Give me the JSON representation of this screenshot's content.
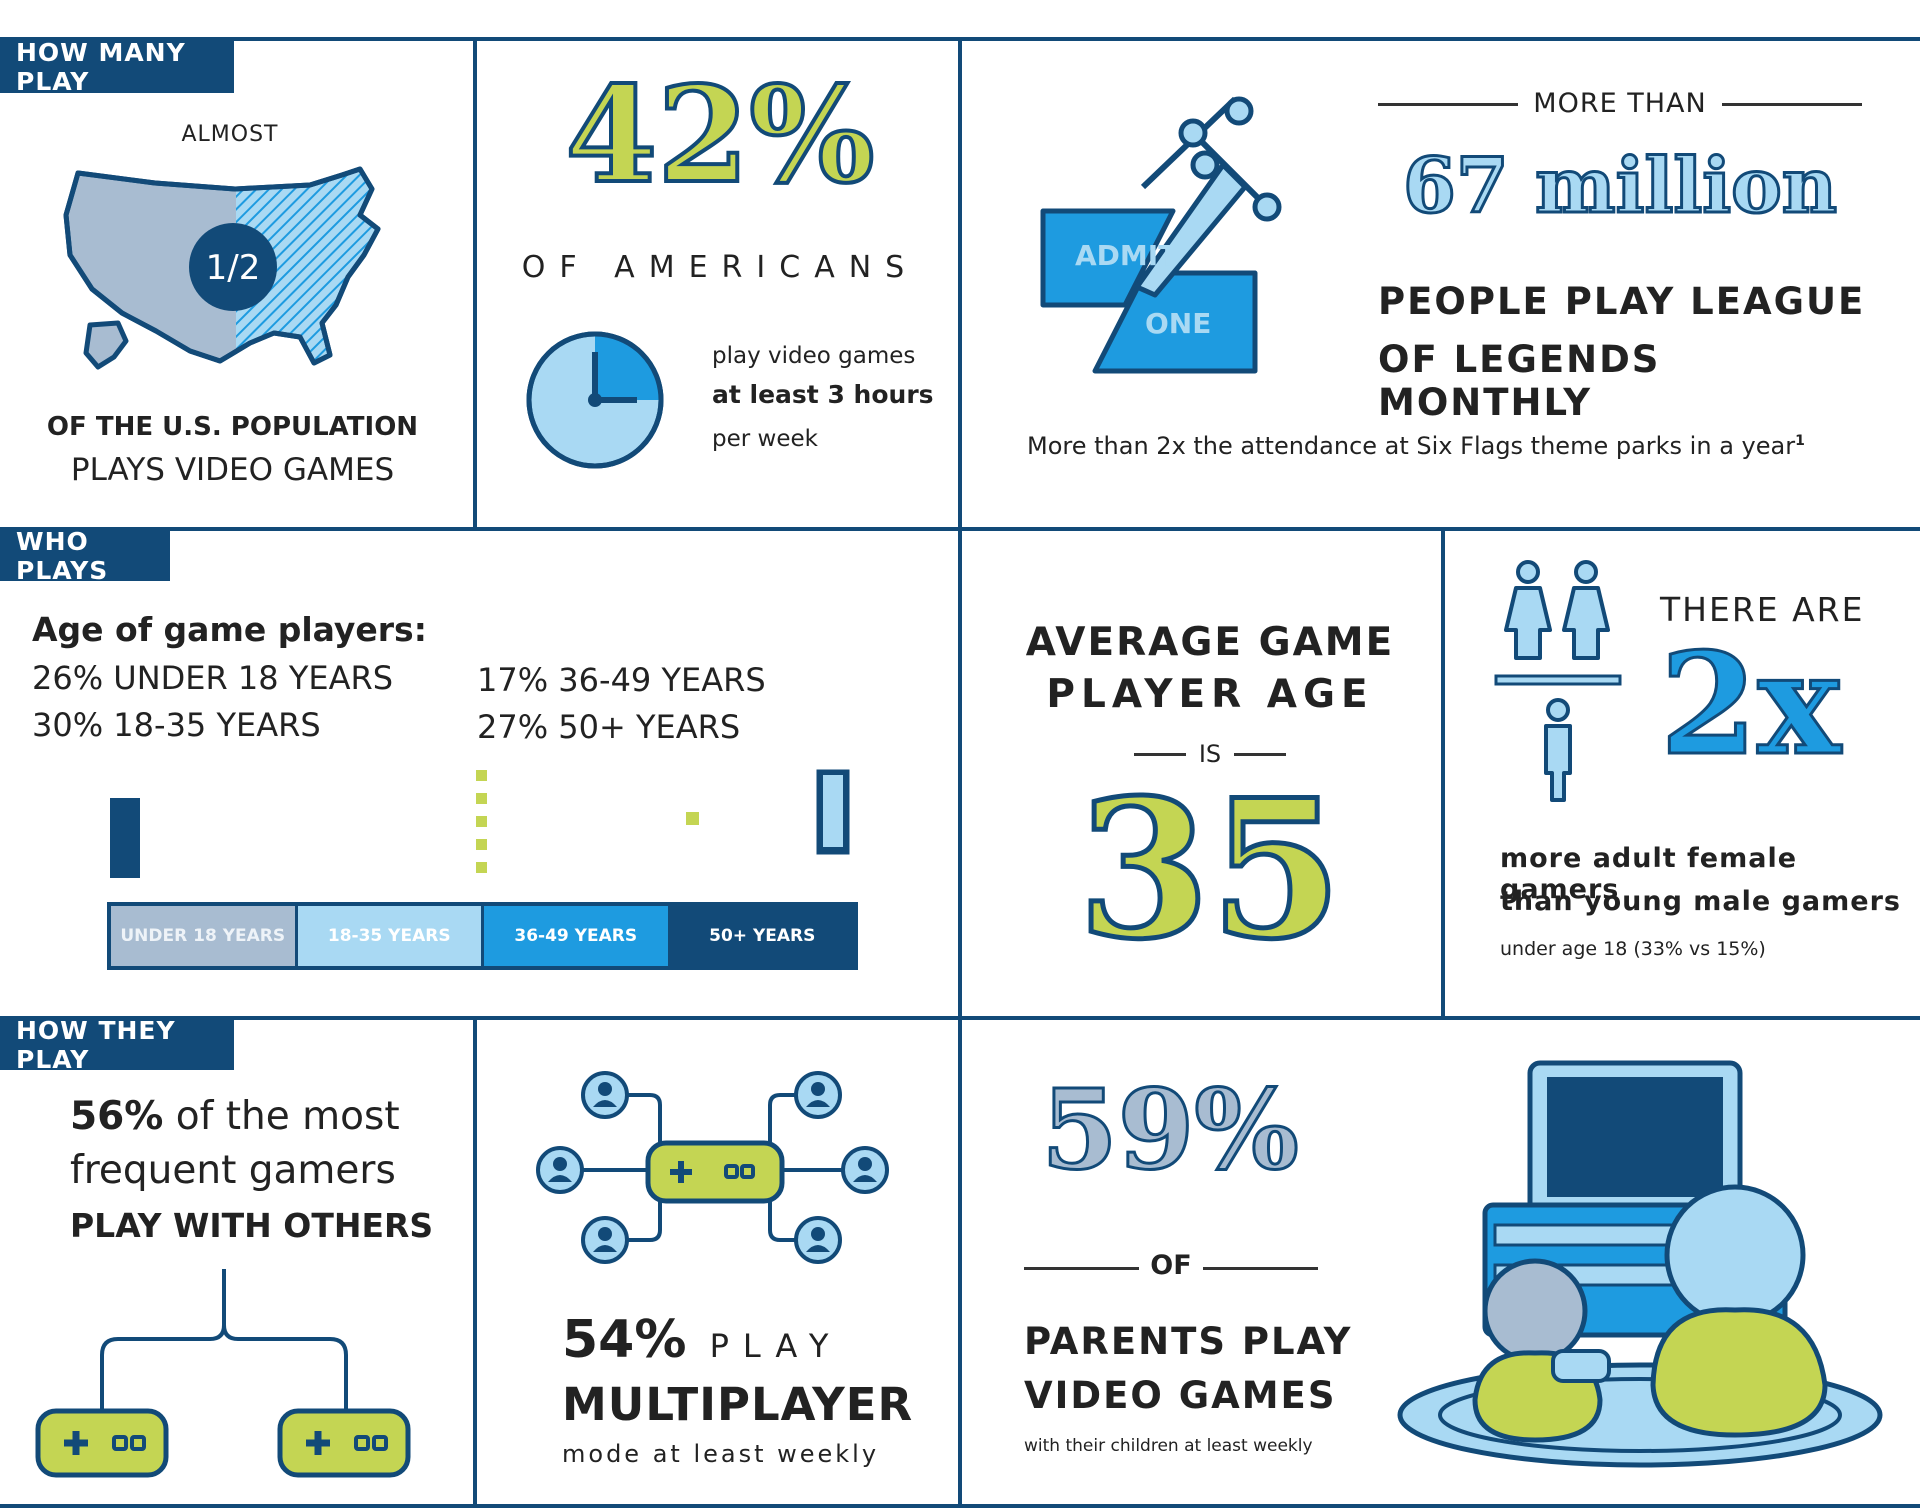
{
  "tags": {
    "how_many": "HOW MANY PLAY",
    "who": "WHO PLAYS",
    "how_they": "HOW THEY PLAY"
  },
  "how_many": {
    "almost": "ALMOST",
    "fraction": "1/2",
    "line1": "OF THE U.S. POPULATION",
    "line2": "PLAYS VIDEO GAMES"
  },
  "americans": {
    "percent": "42%",
    "label": "OF AMERICANS",
    "line1": "play video games",
    "line2": "at least 3 hours",
    "line3": "per week"
  },
  "league": {
    "more_than": "MORE THAN",
    "number": "67 million",
    "line1": "PEOPLE PLAY LEAGUE",
    "line2": "OF LEGENDS MONTHLY",
    "ticket1": "ADMIT",
    "ticket2": "ONE",
    "footnote": "More than 2x the attendance at Six Flags theme parks in a year",
    "footnote_mark": "1"
  },
  "age": {
    "heading": "Age of game players:",
    "items": [
      "26% UNDER 18 YEARS",
      "30% 18-35 YEARS",
      "17% 36-49 YEARS",
      "27% 50+ YEARS"
    ],
    "bar_labels": [
      "UNDER 18 YEARS",
      "18-35 YEARS",
      "36-49 YEARS",
      "50+ YEARS"
    ],
    "bar_colors": [
      "#a8bcd1",
      "#a9d9f3",
      "#1e9be0",
      "#124a78"
    ]
  },
  "average": {
    "line1": "AVERAGE GAME",
    "line2": "PLAYER AGE",
    "is": "IS",
    "value": "35"
  },
  "female": {
    "there_are": "THERE ARE",
    "value": "2x",
    "line1": "more adult female gamers",
    "line2": "than young male gamers",
    "note": "under age 18 (33% vs 15%)"
  },
  "others": {
    "pct": "56%",
    "line1_rest": " of the most",
    "line2": "frequent gamers",
    "line3": "PLAY WITH OTHERS"
  },
  "multiplayer": {
    "pct": "54%",
    "play": "PLAY",
    "line2": "MULTIPLAYER",
    "line3": "mode at least weekly"
  },
  "parents": {
    "percent": "59%",
    "of": "OF",
    "line1": "PARENTS PLAY",
    "line2": "VIDEO GAMES",
    "line3": "with their children at least weekly"
  }
}
